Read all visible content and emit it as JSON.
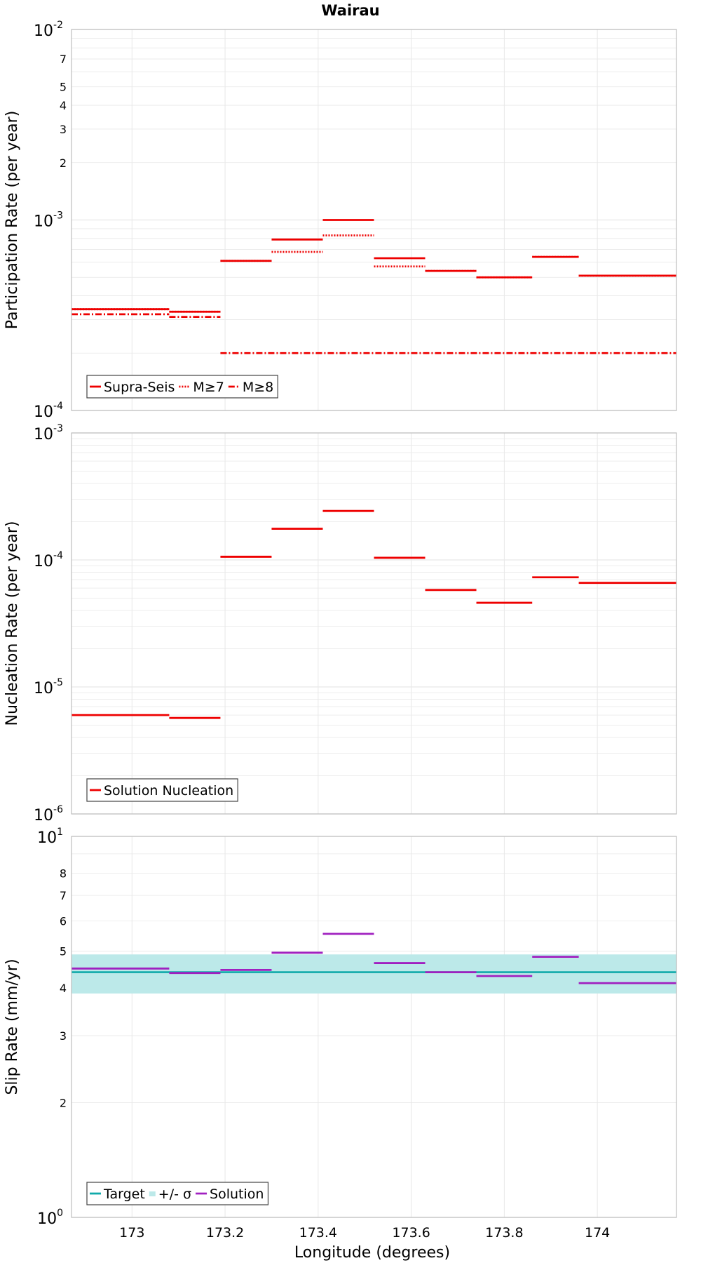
{
  "title": "Wairau",
  "xlabel": "Longitude (degrees)",
  "colors": {
    "rate": "#ee0000",
    "solution": "#a020c0",
    "target": "#11aaaa",
    "band": "#bce9e9",
    "frame": "#bdbdbd",
    "grid": "#e8e8e8"
  },
  "x_ticks": [
    "173",
    "173.2",
    "173.4",
    "173.6",
    "173.8",
    "174"
  ],
  "chart_data": [
    {
      "type": "line",
      "title": "Wairau",
      "ylabel": "Participation Rate (per year)",
      "yscale": "log",
      "xlim": [
        172.87,
        174.17
      ],
      "ylim": [
        0.0001,
        0.01
      ],
      "grid": true,
      "legend_position": "bottom-left",
      "legend": [
        "Supra-Seis",
        "M≥7",
        "M≥8"
      ],
      "major_tick_labels": [
        {
          "base": "10",
          "exp": "-2"
        },
        {
          "base": "10",
          "exp": "-3"
        },
        {
          "base": "10",
          "exp": "-4"
        }
      ],
      "minor_tick_labels": [
        "7",
        "5",
        "4",
        "3",
        "2"
      ],
      "series": [
        {
          "name": "Supra-Seis",
          "style": "solid",
          "segments": [
            {
              "x": [
                172.87,
                173.08
              ],
              "y": 0.00034
            },
            {
              "x": [
                173.08,
                173.19
              ],
              "y": 0.00033
            },
            {
              "x": [
                173.19,
                173.3
              ],
              "y": 0.00061
            },
            {
              "x": [
                173.3,
                173.41
              ],
              "y": 0.00079
            },
            {
              "x": [
                173.41,
                173.52
              ],
              "y": 0.001
            },
            {
              "x": [
                173.52,
                173.63
              ],
              "y": 0.00063
            },
            {
              "x": [
                173.63,
                173.74
              ],
              "y": 0.00054
            },
            {
              "x": [
                173.74,
                173.86
              ],
              "y": 0.0005
            },
            {
              "x": [
                173.86,
                173.96
              ],
              "y": 0.00064
            },
            {
              "x": [
                173.96,
                174.17
              ],
              "y": 0.00051
            }
          ]
        },
        {
          "name": "M≥7",
          "style": "dotted",
          "segments": [
            {
              "x": [
                172.87,
                173.08
              ],
              "y": 0.00034
            },
            {
              "x": [
                173.08,
                173.19
              ],
              "y": 0.00033
            },
            {
              "x": [
                173.19,
                173.3
              ],
              "y": 0.00061
            },
            {
              "x": [
                173.3,
                173.41
              ],
              "y": 0.00068
            },
            {
              "x": [
                173.41,
                173.52
              ],
              "y": 0.00083
            },
            {
              "x": [
                173.52,
                173.63
              ],
              "y": 0.00057
            },
            {
              "x": [
                173.63,
                173.74
              ],
              "y": 0.00054
            },
            {
              "x": [
                173.74,
                173.86
              ],
              "y": 0.0005
            },
            {
              "x": [
                173.86,
                173.96
              ],
              "y": 0.00064
            },
            {
              "x": [
                173.96,
                174.17
              ],
              "y": 0.00051
            }
          ]
        },
        {
          "name": "M≥8",
          "style": "dashdot",
          "segments": [
            {
              "x": [
                172.87,
                173.08
              ],
              "y": 0.00032
            },
            {
              "x": [
                173.08,
                173.19
              ],
              "y": 0.00031
            },
            {
              "x": [
                173.19,
                174.17
              ],
              "y": 0.0002
            }
          ]
        }
      ]
    },
    {
      "type": "line",
      "ylabel": "Nucleation Rate (per year)",
      "yscale": "log",
      "xlim": [
        172.87,
        174.17
      ],
      "ylim": [
        1e-06,
        0.001
      ],
      "grid": true,
      "legend_position": "bottom-left",
      "legend": [
        "Solution Nucleation"
      ],
      "major_tick_labels": [
        {
          "base": "10",
          "exp": "-3"
        },
        {
          "base": "10",
          "exp": "-4"
        },
        {
          "base": "10",
          "exp": "-5"
        },
        {
          "base": "10",
          "exp": "-6"
        }
      ],
      "series": [
        {
          "name": "Solution Nucleation",
          "style": "solid",
          "segments": [
            {
              "x": [
                172.87,
                173.08
              ],
              "y": 6e-06
            },
            {
              "x": [
                173.08,
                173.19
              ],
              "y": 5.7e-06
            },
            {
              "x": [
                173.19,
                173.3
              ],
              "y": 0.000106
            },
            {
              "x": [
                173.3,
                173.41
              ],
              "y": 0.000176
            },
            {
              "x": [
                173.41,
                173.52
              ],
              "y": 0.000243
            },
            {
              "x": [
                173.52,
                173.63
              ],
              "y": 0.000104
            },
            {
              "x": [
                173.63,
                173.74
              ],
              "y": 5.8e-05
            },
            {
              "x": [
                173.74,
                173.86
              ],
              "y": 4.6e-05
            },
            {
              "x": [
                173.86,
                173.96
              ],
              "y": 7.3e-05
            },
            {
              "x": [
                173.96,
                174.17
              ],
              "y": 6.6e-05
            }
          ]
        }
      ]
    },
    {
      "type": "line",
      "ylabel": "Slip Rate (mm/yr)",
      "xlabel": "Longitude (degrees)",
      "yscale": "log",
      "xlim": [
        172.87,
        174.17
      ],
      "ylim": [
        1,
        10
      ],
      "grid": true,
      "legend_position": "bottom-left",
      "legend": [
        "Target",
        "+/- σ",
        "Solution"
      ],
      "major_tick_labels": [
        {
          "base": "10",
          "exp": "1"
        },
        {
          "base": "10",
          "exp": "0"
        }
      ],
      "minor_tick_labels": [
        "8",
        "7",
        "6",
        "5",
        "4",
        "3",
        "2"
      ],
      "band": {
        "name": "+/- σ",
        "low": 3.87,
        "high": 4.9
      },
      "series": [
        {
          "name": "Target",
          "style": "solid",
          "segments": [
            {
              "x": [
                172.87,
                174.17
              ],
              "y": 4.4
            }
          ]
        },
        {
          "name": "Solution",
          "style": "solid",
          "segments": [
            {
              "x": [
                172.87,
                173.08
              ],
              "y": 4.5
            },
            {
              "x": [
                173.08,
                173.19
              ],
              "y": 4.38
            },
            {
              "x": [
                173.19,
                173.3
              ],
              "y": 4.46
            },
            {
              "x": [
                173.3,
                173.41
              ],
              "y": 4.95
            },
            {
              "x": [
                173.41,
                173.52
              ],
              "y": 5.55
            },
            {
              "x": [
                173.52,
                173.63
              ],
              "y": 4.65
            },
            {
              "x": [
                173.63,
                173.74
              ],
              "y": 4.4
            },
            {
              "x": [
                173.74,
                173.86
              ],
              "y": 4.3
            },
            {
              "x": [
                173.86,
                173.96
              ],
              "y": 4.83
            },
            {
              "x": [
                173.96,
                174.17
              ],
              "y": 4.12
            }
          ]
        }
      ]
    }
  ]
}
